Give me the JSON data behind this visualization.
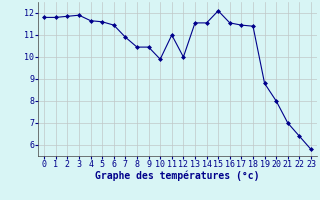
{
  "x": [
    0,
    1,
    2,
    3,
    4,
    5,
    6,
    7,
    8,
    9,
    10,
    11,
    12,
    13,
    14,
    15,
    16,
    17,
    18,
    19,
    20,
    21,
    22,
    23
  ],
  "y": [
    11.8,
    11.8,
    11.85,
    11.9,
    11.65,
    11.6,
    11.45,
    10.9,
    10.45,
    10.45,
    9.9,
    11.0,
    10.0,
    11.55,
    11.55,
    12.1,
    11.55,
    11.45,
    11.4,
    8.8,
    8.0,
    7.0,
    6.4,
    5.8
  ],
  "xlabel": "Graphe des températures (°c)",
  "ylim": [
    5.5,
    12.5
  ],
  "xlim": [
    -0.5,
    23.5
  ],
  "yticks": [
    6,
    7,
    8,
    9,
    10,
    11,
    12
  ],
  "xticks": [
    0,
    1,
    2,
    3,
    4,
    5,
    6,
    7,
    8,
    9,
    10,
    11,
    12,
    13,
    14,
    15,
    16,
    17,
    18,
    19,
    20,
    21,
    22,
    23
  ],
  "line_color": "#00008B",
  "marker": "D",
  "marker_size": 2.0,
  "bg_color": "#d8f5f5",
  "grid_color": "#c0c8c8",
  "xlabel_fontsize": 7.0,
  "tick_fontsize": 6.0,
  "linewidth": 0.8
}
